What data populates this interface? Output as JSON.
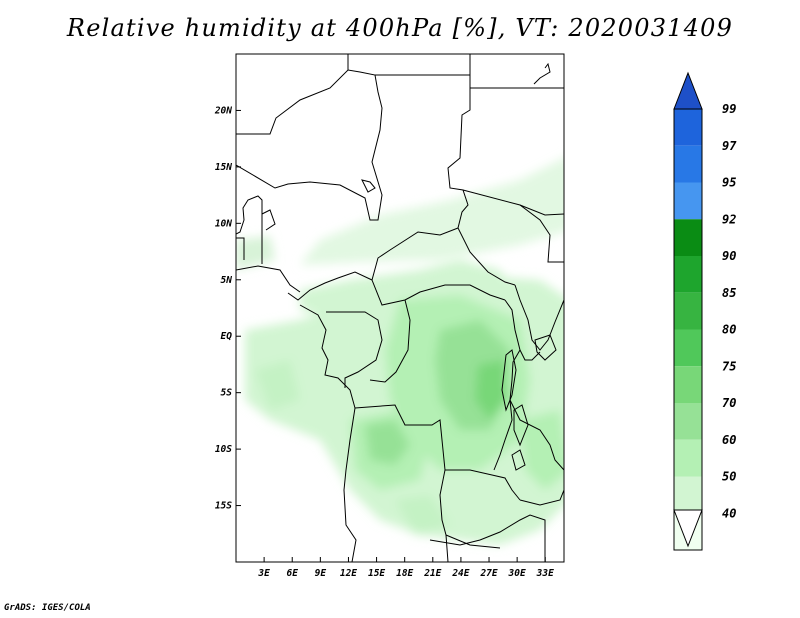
{
  "title": "Relative humidity at 400hPa [%], VT: 2020031409",
  "footer": "GrADS: IGES/COLA",
  "map": {
    "lon_range": [
      0,
      35
    ],
    "lat_range": [
      -20,
      25
    ],
    "lat_ticks": [
      {
        "label": "20N",
        "value": 20
      },
      {
        "label": "15N",
        "value": 15
      },
      {
        "label": "10N",
        "value": 10
      },
      {
        "label": "5N",
        "value": 5
      },
      {
        "label": "EQ",
        "value": 0
      },
      {
        "label": "5S",
        "value": -5
      },
      {
        "label": "10S",
        "value": -10
      },
      {
        "label": "15S",
        "value": -15
      }
    ],
    "lon_ticks": [
      {
        "label": "3E",
        "value": 3
      },
      {
        "label": "6E",
        "value": 6
      },
      {
        "label": "9E",
        "value": 9
      },
      {
        "label": "12E",
        "value": 12
      },
      {
        "label": "15E",
        "value": 15
      },
      {
        "label": "18E",
        "value": 18
      },
      {
        "label": "21E",
        "value": 21
      },
      {
        "label": "24E",
        "value": 24
      },
      {
        "label": "27E",
        "value": 27
      },
      {
        "label": "30E",
        "value": 30
      },
      {
        "label": "33E",
        "value": 33
      }
    ]
  },
  "colorbar": {
    "levels": [
      "99",
      "97",
      "95",
      "92",
      "90",
      "85",
      "80",
      "75",
      "70",
      "60",
      "50",
      "40"
    ],
    "colors": [
      "#1e64dc",
      "#2878e6",
      "#4696f0",
      "#0a8c14",
      "#1ea52d",
      "#37b441",
      "#50c85a",
      "#78d778",
      "#96e196",
      "#b4f0b4",
      "#d2f5d2",
      "#f0fff0"
    ],
    "top_arrow_color": "#1e50c8",
    "bottom_arrow_color": "#ffffff"
  }
}
